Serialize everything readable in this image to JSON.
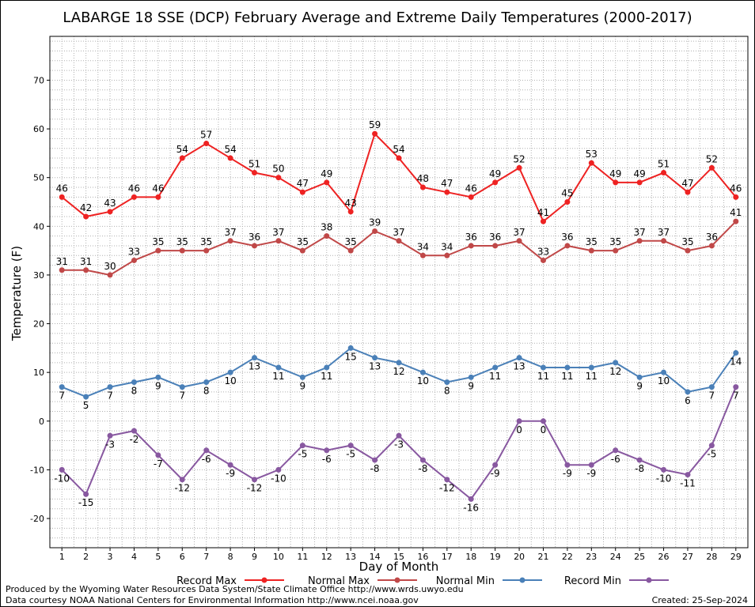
{
  "chart_data": {
    "type": "line",
    "title": "LABARGE 18 SSE (DCP) February Average and Extreme Daily Temperatures (2000-2017)",
    "xlabel": "Day of Month",
    "ylabel": "Temperature (F)",
    "ylim": [
      -26,
      79
    ],
    "y_ticks": [
      -20,
      -10,
      0,
      10,
      20,
      30,
      40,
      50,
      60,
      70
    ],
    "grid": true,
    "legend_position": "bottom",
    "x": [
      1,
      2,
      3,
      4,
      5,
      6,
      7,
      8,
      9,
      10,
      11,
      12,
      13,
      14,
      15,
      16,
      17,
      18,
      19,
      20,
      21,
      22,
      23,
      24,
      25,
      26,
      27,
      28,
      29
    ],
    "series": [
      {
        "name": "Record Max",
        "color": "#ee2222",
        "label_pos": "above",
        "values": [
          46,
          42,
          43,
          46,
          46,
          54,
          57,
          54,
          51,
          50,
          47,
          49,
          43,
          59,
          54,
          48,
          47,
          46,
          49,
          52,
          41,
          45,
          53,
          49,
          49,
          51,
          47,
          52,
          46
        ]
      },
      {
        "name": "Normal Max",
        "color": "#c04848",
        "label_pos": "above",
        "values": [
          31,
          31,
          30,
          33,
          35,
          35,
          35,
          37,
          36,
          37,
          35,
          38,
          35,
          39,
          37,
          34,
          34,
          36,
          36,
          37,
          33,
          36,
          35,
          35,
          37,
          37,
          35,
          36,
          41
        ]
      },
      {
        "name": "Normal Min",
        "color": "#4a80b8",
        "label_pos": "below",
        "values": [
          7,
          5,
          7,
          8,
          9,
          7,
          8,
          10,
          13,
          11,
          9,
          11,
          15,
          13,
          12,
          10,
          8,
          9,
          11,
          13,
          11,
          11,
          11,
          12,
          9,
          10,
          6,
          7,
          14
        ]
      },
      {
        "name": "Record Min",
        "color": "#8858a0",
        "label_pos": "below",
        "values": [
          -10,
          -15,
          -3,
          -2,
          -7,
          -12,
          -6,
          -9,
          -12,
          -10,
          -5,
          -6,
          -5,
          -8,
          -3,
          -8,
          -12,
          -16,
          -9,
          0,
          0,
          -9,
          -9,
          -6,
          -8,
          -10,
          -11,
          -5,
          7
        ]
      }
    ]
  },
  "footer": {
    "produced_by": "Produced by the Wyoming Water Resources Data System/State Climate Office http://www.wrds.uwyo.edu",
    "courtesy": "Data courtesy NOAA National Centers for Environmental Information http://www.ncei.noaa.gov",
    "created": "Created: 25-Sep-2024"
  }
}
